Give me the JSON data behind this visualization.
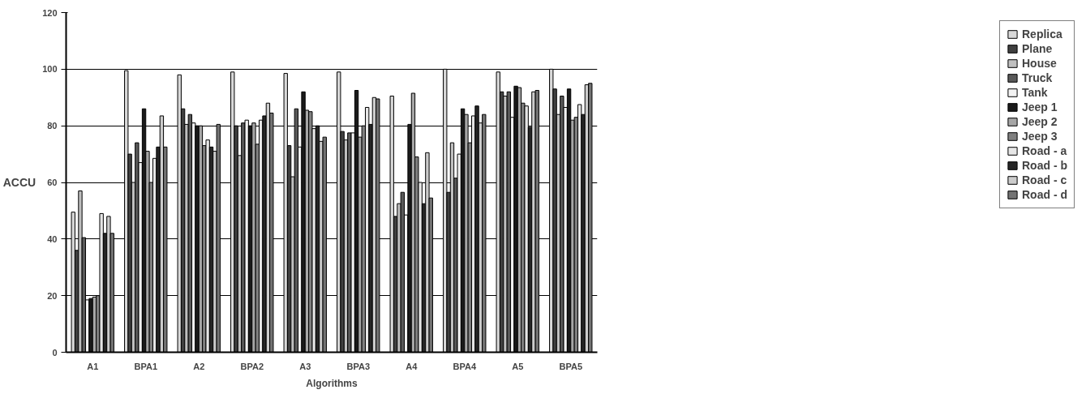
{
  "chart_data": {
    "type": "bar",
    "xlabel": "Algorithms",
    "ylabel": "ACCU",
    "categories": [
      "A1",
      "BPA1",
      "A2",
      "BPA2",
      "A3",
      "BPA3",
      "A4",
      "BPA4",
      "A5",
      "BPA5"
    ],
    "ylim": [
      0,
      120
    ],
    "yticks": [
      0,
      20,
      40,
      60,
      80,
      100,
      120
    ],
    "grid": "y",
    "legend": "right",
    "series": [
      {
        "name": "Replica",
        "color": "#d9d9d9",
        "values": [
          49.5,
          99.5,
          98,
          99,
          98.5,
          99,
          90.5,
          100,
          99,
          100
        ]
      },
      {
        "name": "Plane",
        "color": "#404040",
        "values": [
          36,
          70,
          86,
          80,
          73,
          78,
          48,
          56.5,
          92,
          93
        ]
      },
      {
        "name": "House",
        "color": "#bfbfbf",
        "values": [
          57,
          60,
          80.5,
          69.5,
          62,
          75,
          52.5,
          74,
          90.5,
          84
        ]
      },
      {
        "name": "Truck",
        "color": "#595959",
        "values": [
          40.5,
          74,
          84,
          81,
          86,
          77.5,
          56.5,
          61.5,
          92,
          90.5
        ]
      },
      {
        "name": "Tank",
        "color": "#f2f2f2",
        "values": [
          18.5,
          67,
          81,
          82,
          72.5,
          77.5,
          48.5,
          70,
          83,
          86.5
        ]
      },
      {
        "name": "Jeep 1",
        "color": "#1a1a1a",
        "values": [
          19,
          86,
          80,
          80,
          92,
          92.5,
          80.5,
          86,
          94,
          93
        ]
      },
      {
        "name": "Jeep 2",
        "color": "#a6a6a6",
        "values": [
          19.5,
          71,
          80,
          81,
          85.5,
          76,
          91.5,
          84,
          93.5,
          82
        ]
      },
      {
        "name": "Jeep 3",
        "color": "#808080",
        "values": [
          20,
          60,
          73,
          73.5,
          85,
          80,
          69,
          74,
          88,
          83
        ]
      },
      {
        "name": "Road - a",
        "color": "#e6e6e6",
        "values": [
          49,
          68.5,
          75,
          82,
          79,
          86.5,
          60,
          83.5,
          87,
          87.5
        ]
      },
      {
        "name": "Road - b",
        "color": "#262626",
        "values": [
          42,
          72.5,
          72.5,
          83.5,
          80,
          80.5,
          52.5,
          87,
          79.5,
          84
        ]
      },
      {
        "name": "Road - c",
        "color": "#cccccc",
        "values": [
          48,
          83.5,
          71,
          88,
          74.5,
          90,
          70.5,
          81,
          92,
          94.5
        ]
      },
      {
        "name": "Road - d",
        "color": "#737373",
        "values": [
          42,
          72.5,
          80.5,
          84.5,
          76,
          89.5,
          54.5,
          84,
          92.5,
          95
        ]
      }
    ]
  }
}
